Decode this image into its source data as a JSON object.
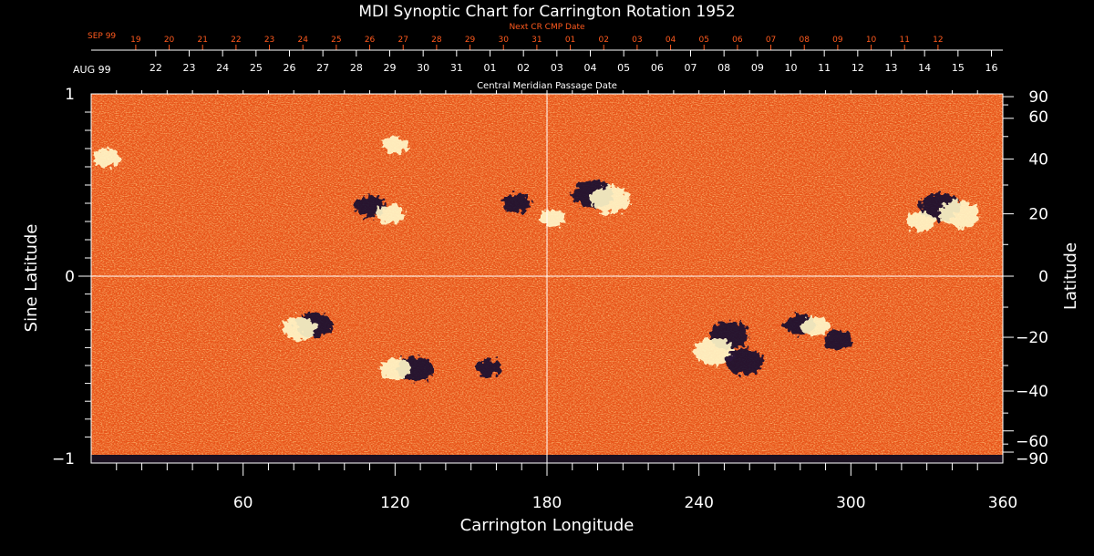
{
  "chart_data": {
    "type": "heatmap",
    "title": "MDI Synoptic Chart for Carrington Rotation 1952",
    "xlabel": "Carrington Longitude",
    "ylabel_left": "Sine Latitude",
    "ylabel_right": "Latitude",
    "xlim": [
      0,
      360
    ],
    "ylim": [
      -1,
      1
    ],
    "x_ticks": [
      60,
      120,
      180,
      240,
      300,
      360
    ],
    "y_ticks_left": [
      {
        "value": 1,
        "label": "1"
      },
      {
        "value": 0,
        "label": "0"
      },
      {
        "value": -1,
        "label": "−1"
      }
    ],
    "y_ticks_right": [
      90,
      60,
      40,
      20,
      0,
      -20,
      -40,
      -60,
      -90
    ],
    "grid_lines": {
      "longitude": 180,
      "sine_latitude": 0
    },
    "cmp_axis": {
      "label": "Central Meridian Passage Date",
      "month_start": "AUG 99",
      "days": [
        "16",
        "15",
        "14",
        "13",
        "12",
        "11",
        "10",
        "09",
        "08",
        "07",
        "06",
        "05",
        "04",
        "03",
        "02",
        "01",
        "31",
        "30",
        "29",
        "28",
        "27",
        "26",
        "25",
        "24",
        "23",
        "22"
      ],
      "day_longitudes": [
        355.5,
        342.3,
        329.1,
        315.9,
        302.7,
        289.5,
        276.3,
        263.1,
        249.9,
        236.7,
        223.5,
        210.3,
        197.1,
        183.9,
        170.7,
        157.5,
        144.3,
        131.1,
        117.9,
        104.7,
        91.5,
        78.3,
        65.1,
        51.9,
        38.7,
        25.5
      ]
    },
    "next_cr_axis": {
      "label": "Next CR CMP Date",
      "month_start": "SEP 99",
      "days": [
        "12",
        "11",
        "10",
        "09",
        "08",
        "07",
        "06",
        "05",
        "04",
        "03",
        "02",
        "01",
        "31",
        "30",
        "29",
        "28",
        "27",
        "26",
        "25",
        "24",
        "23",
        "22",
        "21",
        "20",
        "19"
      ],
      "day_longitudes": [
        334.4,
        321.2,
        308.0,
        294.8,
        281.6,
        268.4,
        255.2,
        242.0,
        228.8,
        215.6,
        202.4,
        189.2,
        176.0,
        162.8,
        149.6,
        136.4,
        123.2,
        110.0,
        96.8,
        83.6,
        70.4,
        57.2,
        44.0,
        30.8,
        17.6
      ]
    },
    "colors": {
      "background_field": "#f0601a",
      "positive_polarity": "#fff6c8",
      "negative_polarity": "#1a0830",
      "axis": "#ffffff",
      "next_cr_axis": "#ff5a1e"
    },
    "active_regions": [
      {
        "lon": 198,
        "sinlat": 0.45,
        "polarity": "negative",
        "strength": 1.0
      },
      {
        "lon": 205,
        "sinlat": 0.42,
        "polarity": "positive",
        "strength": 1.0
      },
      {
        "lon": 335,
        "sinlat": 0.38,
        "polarity": "negative",
        "strength": 1.0
      },
      {
        "lon": 343,
        "sinlat": 0.34,
        "polarity": "positive",
        "strength": 1.0
      },
      {
        "lon": 328,
        "sinlat": 0.3,
        "polarity": "positive",
        "strength": 0.6
      },
      {
        "lon": 252,
        "sinlat": -0.33,
        "polarity": "negative",
        "strength": 1.0
      },
      {
        "lon": 246,
        "sinlat": -0.42,
        "polarity": "positive",
        "strength": 1.0
      },
      {
        "lon": 258,
        "sinlat": -0.48,
        "polarity": "negative",
        "strength": 0.9
      },
      {
        "lon": 88,
        "sinlat": -0.27,
        "polarity": "negative",
        "strength": 0.9
      },
      {
        "lon": 82,
        "sinlat": -0.29,
        "polarity": "positive",
        "strength": 0.8
      },
      {
        "lon": 128,
        "sinlat": -0.52,
        "polarity": "negative",
        "strength": 0.9
      },
      {
        "lon": 120,
        "sinlat": -0.52,
        "polarity": "positive",
        "strength": 0.7
      },
      {
        "lon": 280,
        "sinlat": -0.27,
        "polarity": "negative",
        "strength": 0.7
      },
      {
        "lon": 286,
        "sinlat": -0.28,
        "polarity": "positive",
        "strength": 0.6
      },
      {
        "lon": 110,
        "sinlat": 0.38,
        "polarity": "negative",
        "strength": 0.7
      },
      {
        "lon": 118,
        "sinlat": 0.34,
        "polarity": "positive",
        "strength": 0.6
      },
      {
        "lon": 168,
        "sinlat": 0.4,
        "polarity": "negative",
        "strength": 0.6
      },
      {
        "lon": 182,
        "sinlat": 0.32,
        "polarity": "positive",
        "strength": 0.5
      },
      {
        "lon": 295,
        "sinlat": -0.36,
        "polarity": "negative",
        "strength": 0.6
      },
      {
        "lon": 157,
        "sinlat": -0.51,
        "polarity": "negative",
        "strength": 0.5
      },
      {
        "lon": 6,
        "sinlat": 0.65,
        "polarity": "positive",
        "strength": 0.6
      },
      {
        "lon": 120,
        "sinlat": 0.72,
        "polarity": "positive",
        "strength": 0.5
      }
    ]
  }
}
